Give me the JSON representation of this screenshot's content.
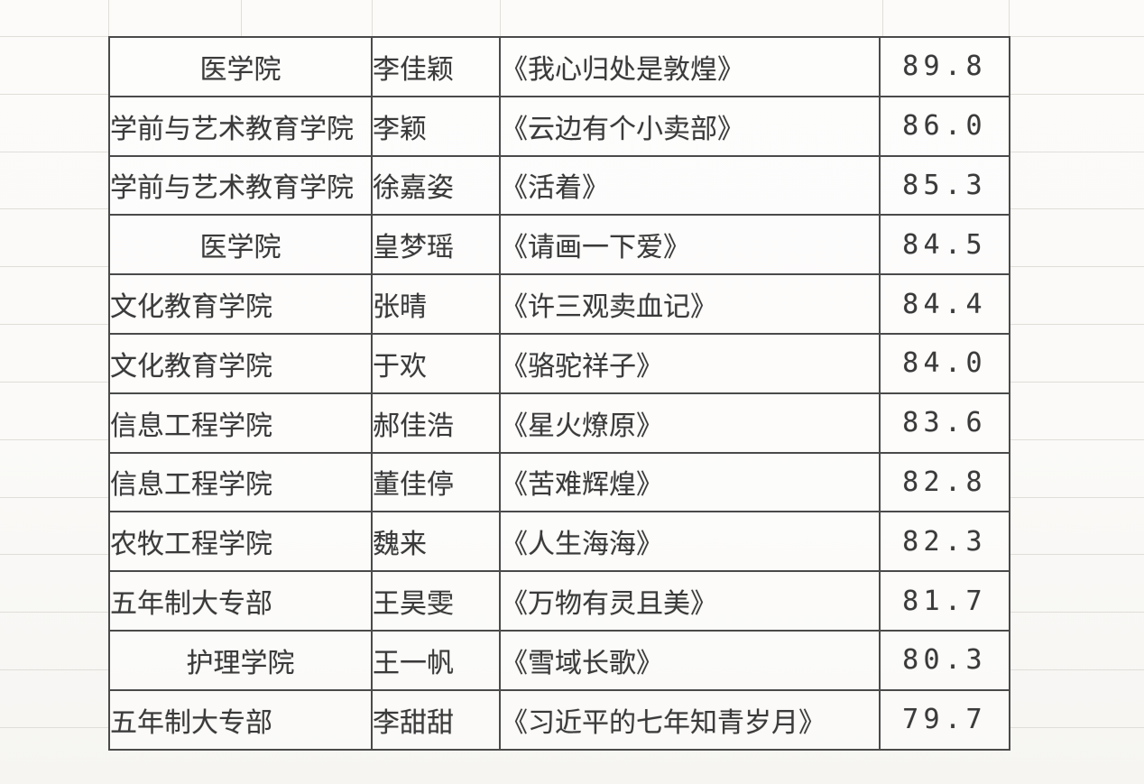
{
  "table": {
    "rows": [
      {
        "college": "医学院",
        "college_align": "center",
        "name": "李佳颖",
        "book": "《我心归处是敦煌》",
        "score": "89.8"
      },
      {
        "college": "学前与艺术教育学院",
        "college_align": "left",
        "name": "李颖",
        "book": "《云边有个小卖部》",
        "score": "86.0"
      },
      {
        "college": "学前与艺术教育学院",
        "college_align": "left",
        "name": "徐嘉姿",
        "book": "《活着》",
        "score": "85.3"
      },
      {
        "college": "医学院",
        "college_align": "center",
        "name": "皇梦瑶",
        "book": "《请画一下爱》",
        "score": "84.5"
      },
      {
        "college": "文化教育学院",
        "college_align": "left",
        "name": "张晴",
        "book": "《许三观卖血记》",
        "score": "84.4"
      },
      {
        "college": "文化教育学院",
        "college_align": "left",
        "name": "于欢",
        "book": "《骆驼祥子》",
        "score": "84.0"
      },
      {
        "college": "信息工程学院",
        "college_align": "left",
        "name": "郝佳浩",
        "book": "《星火燎原》",
        "score": "83.6"
      },
      {
        "college": "信息工程学院",
        "college_align": "left",
        "name": "董佳停",
        "book": "《苦难辉煌》",
        "score": "82.8"
      },
      {
        "college": "农牧工程学院",
        "college_align": "left",
        "name": "魏来",
        "book": "《人生海海》",
        "score": "82.3"
      },
      {
        "college": "五年制大专部",
        "college_align": "left",
        "name": "王昊雯",
        "book": "《万物有灵且美》",
        "score": "81.7"
      },
      {
        "college": "护理学院",
        "college_align": "center",
        "name": "王一帆",
        "book": "《雪域长歌》",
        "score": "80.3"
      },
      {
        "college": "五年制大专部",
        "college_align": "left",
        "name": "李甜甜",
        "book": "《习近平的七年知青岁月》",
        "score": "79.7"
      }
    ]
  },
  "colors": {
    "text": "#3a3a3a",
    "table_border": "#4a4a4a",
    "faint_gridline": "#e0ded8",
    "background": "#fbfaf8",
    "cell_background": "#fdfdfc"
  }
}
